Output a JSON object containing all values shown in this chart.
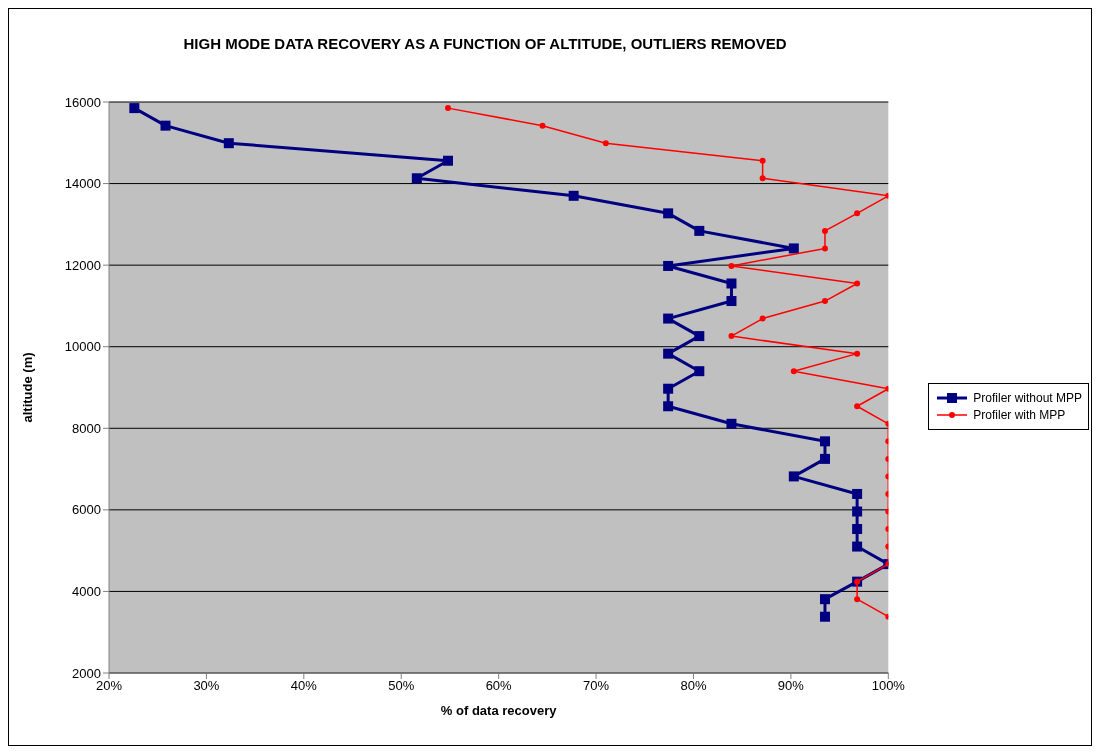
{
  "chart_data": {
    "type": "line",
    "title": "HIGH MODE DATA RECOVERY AS A FUNCTION OF ALTITUDE, OUTLIERS REMOVED",
    "xlabel": "% of data recovery",
    "ylabel": "altitude (m)",
    "xlim": [
      20,
      100
    ],
    "xticks": [
      {
        "value": 20,
        "label": "20%"
      },
      {
        "value": 30,
        "label": "30%"
      },
      {
        "value": 40,
        "label": "40%"
      },
      {
        "value": 50,
        "label": "50%"
      },
      {
        "value": 60,
        "label": "60%"
      },
      {
        "value": 70,
        "label": "70%"
      },
      {
        "value": 80,
        "label": "80%"
      },
      {
        "value": 90,
        "label": "90%"
      },
      {
        "value": 100,
        "label": "100%"
      }
    ],
    "ylim": [
      2000,
      16000
    ],
    "yticks": [
      2000,
      4000,
      6000,
      8000,
      10000,
      12000,
      14000,
      16000
    ],
    "grid": "y",
    "legend": "right",
    "line_style": "solid",
    "series": [
      {
        "name": "Profiler without MPP",
        "color": "#000080",
        "marker": "square",
        "x": [
          22.6,
          25.8,
          32.3,
          54.8,
          51.6,
          67.7,
          77.4,
          80.6,
          90.3,
          77.4,
          83.9,
          83.9,
          77.4,
          80.6,
          77.4,
          80.6,
          77.4,
          77.4,
          83.9,
          93.5,
          93.5,
          90.3,
          96.8,
          96.8,
          96.8,
          96.8,
          100,
          96.8,
          93.5,
          93.5
        ],
        "values": [
          15850,
          15420,
          14990,
          14560,
          14130,
          13700,
          13270,
          12840,
          12410,
          11980,
          11550,
          11120,
          10690,
          10260,
          9830,
          9400,
          8970,
          8540,
          8110,
          7680,
          7250,
          6820,
          6390,
          5960,
          5530,
          5100,
          4670,
          4240,
          3810,
          3380
        ]
      },
      {
        "name": "Profiler with MPP",
        "color": "#ff0000",
        "marker": "circle",
        "x": [
          54.8,
          64.5,
          71.0,
          87.1,
          87.1,
          100,
          96.8,
          93.5,
          93.5,
          83.9,
          96.8,
          93.5,
          87.1,
          83.9,
          96.8,
          90.3,
          100,
          96.8,
          100,
          100,
          100,
          100,
          100,
          100,
          100,
          100,
          100,
          96.8,
          96.8,
          100
        ],
        "values": [
          15850,
          15420,
          14990,
          14560,
          14130,
          13700,
          13270,
          12840,
          12410,
          11980,
          11550,
          11120,
          10690,
          10260,
          9830,
          9400,
          8970,
          8540,
          8110,
          7680,
          7250,
          6820,
          6390,
          5960,
          5530,
          5100,
          4670,
          4240,
          3810,
          3380
        ]
      }
    ]
  }
}
